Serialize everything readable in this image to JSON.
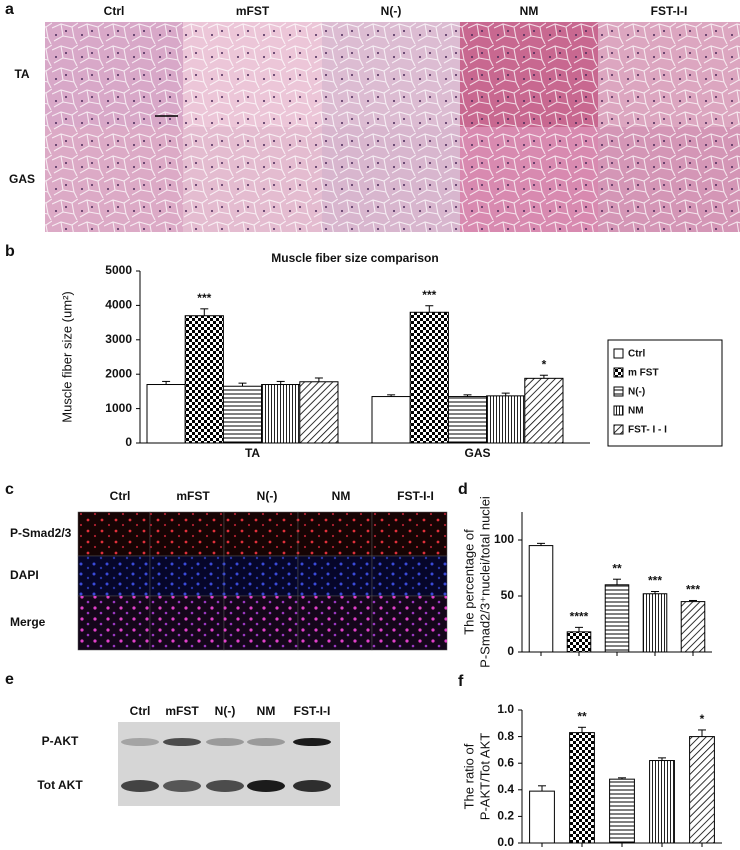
{
  "panel_a": {
    "label": "a",
    "columns": [
      "Ctrl",
      "mFST",
      "N(-)",
      "NM",
      "FST-I-I"
    ],
    "rows": [
      "TA",
      "GAS"
    ]
  },
  "chart_data": [
    {
      "type": "bar",
      "panel_label": "b",
      "title": "Muscle fiber size comparison",
      "ylabel": [
        "Muscle fiber size (um²)"
      ],
      "categories": [
        "TA",
        "GAS"
      ],
      "series": [
        {
          "name": "Ctrl",
          "pattern": "none",
          "values": [
            1700,
            1350
          ],
          "errors": [
            90,
            50
          ]
        },
        {
          "name": "m FST",
          "pattern": "check",
          "values": [
            3700,
            3800
          ],
          "errors": [
            200,
            190
          ],
          "stars": [
            "***",
            "***"
          ]
        },
        {
          "name": "N(-)",
          "pattern": "hline",
          "values": [
            1650,
            1350
          ],
          "errors": [
            90,
            50
          ]
        },
        {
          "name": "NM",
          "pattern": "vline",
          "values": [
            1700,
            1370
          ],
          "errors": [
            90,
            80
          ]
        },
        {
          "name": "FST- I - I",
          "pattern": "diag",
          "values": [
            1780,
            1880
          ],
          "errors": [
            110,
            90
          ],
          "stars": [
            null,
            "*"
          ]
        }
      ],
      "ylim": [
        0,
        5000
      ],
      "yticks": [
        0,
        1000,
        2000,
        3000,
        4000,
        5000
      ],
      "legend": "right"
    },
    {
      "type": "bar",
      "panel_label": "d",
      "ylabel": [
        "The percentage of",
        "P-Smad2/3⁺nuclei/total nuclei"
      ],
      "values": [
        95,
        18,
        60,
        52,
        45
      ],
      "errors": [
        2,
        4,
        5,
        2,
        1
      ],
      "stars": [
        null,
        "****",
        "**",
        "***",
        "***"
      ],
      "patterns": [
        "none",
        "check",
        "hline",
        "vline",
        "diag"
      ],
      "ylim": [
        0,
        125
      ],
      "yticks": [
        0,
        50,
        100
      ]
    },
    {
      "type": "bar",
      "panel_label": "f",
      "ylabel": [
        "The ratio of",
        "P-AKT/Tot AKT"
      ],
      "values": [
        0.39,
        0.83,
        0.48,
        0.62,
        0.8
      ],
      "errors": [
        0.04,
        0.04,
        0.01,
        0.02,
        0.05
      ],
      "stars": [
        null,
        "**",
        null,
        null,
        "*"
      ],
      "patterns": [
        "none",
        "check",
        "hline",
        "vline",
        "diag"
      ],
      "ylim": [
        0,
        1.0
      ],
      "yticks": [
        {
          "value": 0,
          "label": "0.0"
        },
        0.2,
        0.4,
        0.6,
        0.8,
        {
          "value": 1.0,
          "label": "1.0"
        }
      ]
    }
  ],
  "panel_c": {
    "label": "c",
    "columns": [
      "Ctrl",
      "mFST",
      "N(-)",
      "NM",
      "FST-I-I"
    ],
    "rows": [
      "P-Smad2/3",
      "DAPI",
      "Merge"
    ]
  },
  "panel_e": {
    "label": "e",
    "columns": [
      "Ctrl",
      "mFST",
      "N(-)",
      "NM",
      "FST-I-I"
    ],
    "rows": [
      "P-AKT",
      "Tot AKT"
    ]
  }
}
